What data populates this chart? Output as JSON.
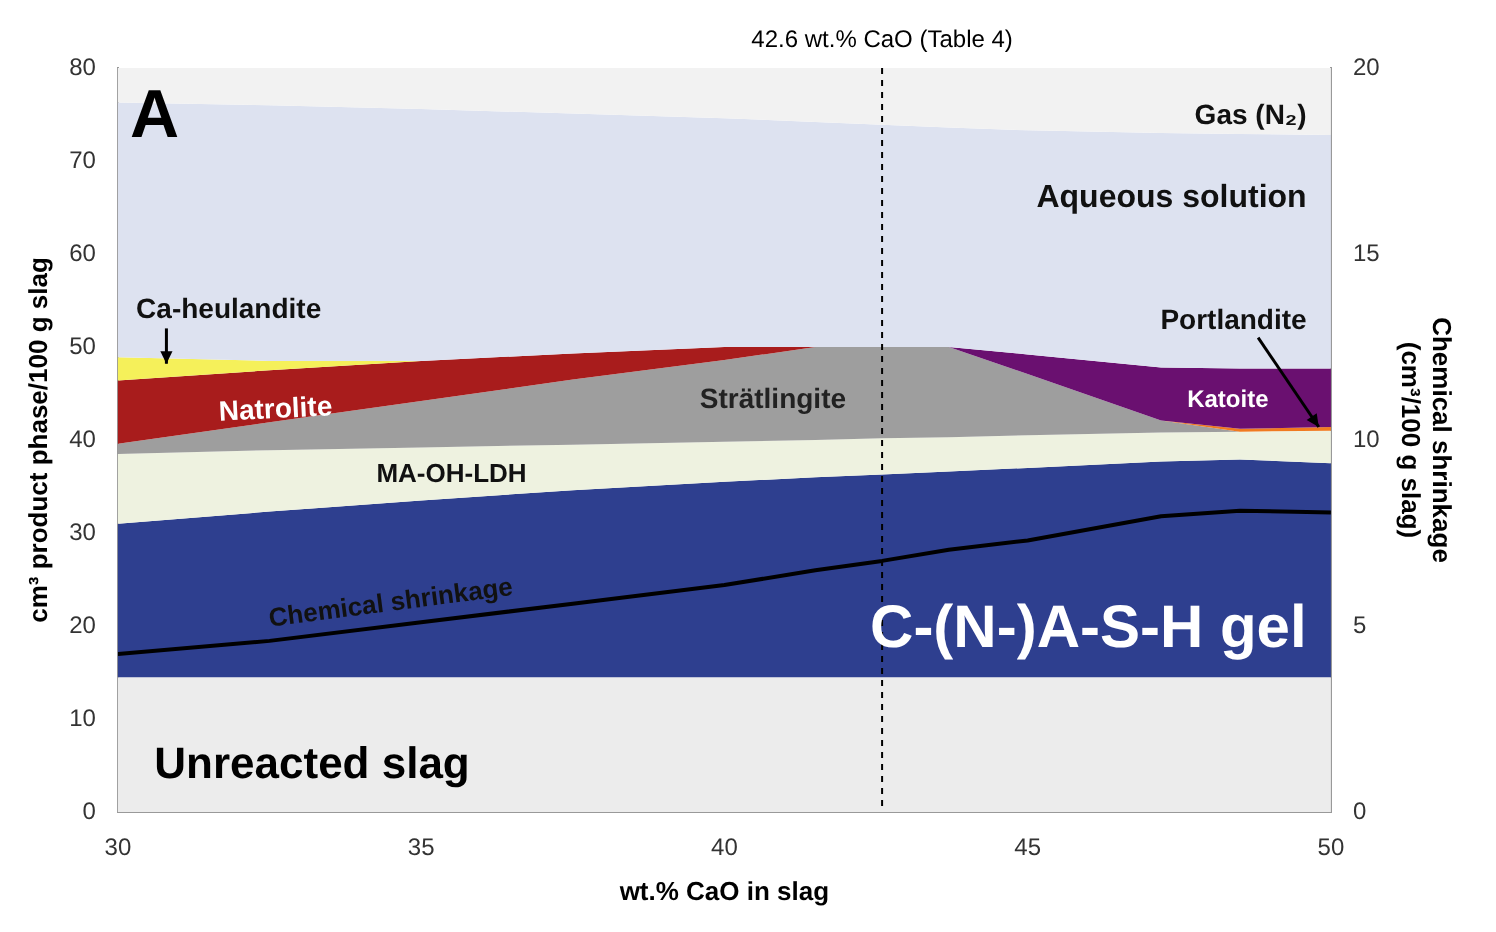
{
  "chart_data": {
    "type": "area",
    "stacked": true,
    "xlabel": "wt.% CaO in slag",
    "ylabel": "cm³ product phase/100 g slag",
    "y2label": "Chemical shrinkage (cm³/100 g slag)",
    "x": [
      30,
      32.5,
      35,
      37.5,
      40,
      41.5,
      42.6,
      43.7,
      45,
      47.2,
      48.5,
      50
    ],
    "xlim": [
      30,
      50
    ],
    "xticks": [
      30,
      35,
      40,
      45,
      50
    ],
    "ylim": [
      0,
      80
    ],
    "yticks": [
      0,
      10,
      20,
      30,
      40,
      50,
      60,
      70,
      80
    ],
    "y2lim": [
      0,
      20
    ],
    "y2ticks": [
      0,
      5,
      10,
      15,
      20
    ],
    "series": [
      {
        "name": "Unreacted slag",
        "color": "#ececec",
        "values": [
          14.5,
          14.5,
          14.5,
          14.5,
          14.5,
          14.5,
          14.5,
          14.5,
          14.5,
          14.5,
          14.5,
          14.5
        ]
      },
      {
        "name": "C-(N-)A-S-H gel",
        "color": "#2e3f8f",
        "values": [
          16.5,
          17.8,
          19,
          20.1,
          21,
          21.5,
          21.8,
          22.1,
          22.5,
          23.2,
          23.4,
          23
        ]
      },
      {
        "name": "MA-OH-LDH",
        "color": "#eef2e0",
        "values": [
          7.5,
          6.6,
          5.7,
          4.9,
          4.3,
          4,
          3.9,
          3.7,
          3.5,
          3.1,
          3,
          3.5
        ]
      },
      {
        "name": "Strätlingite",
        "color": "#9e9e9e",
        "values": [
          1.1,
          3,
          5,
          7,
          8.8,
          10,
          9.8,
          9.7,
          6.6,
          1.3,
          0,
          null
        ]
      },
      {
        "name": "Portlandite",
        "color": "#f07a20",
        "values": [
          null,
          null,
          null,
          null,
          null,
          null,
          null,
          null,
          null,
          0,
          0.3,
          0.4
        ]
      },
      {
        "name": "Katoite",
        "color": "#6a1070",
        "values": [
          null,
          null,
          null,
          null,
          null,
          null,
          null,
          0,
          2.1,
          5.7,
          6.5,
          6.3
        ]
      },
      {
        "name": "Natrolite",
        "color": "#a81c1c",
        "values": [
          6.8,
          5.6,
          4.3,
          2.8,
          1.4,
          0,
          null,
          null,
          null,
          null,
          null,
          null
        ]
      },
      {
        "name": "Ca-heulandite",
        "color": "#f5f05a",
        "values": [
          2.5,
          1,
          0,
          null,
          null,
          null,
          null,
          null,
          null,
          null,
          null,
          null
        ]
      },
      {
        "name": "Aqueous solution",
        "color": "#dde2f0",
        "values": [
          27.4,
          27.5,
          27.1,
          25.8,
          24.6,
          24.2,
          23.9,
          23.6,
          24.1,
          25.2,
          25.2,
          25.1
        ]
      },
      {
        "name": "Gas (N₂)",
        "color": "#f2f2f2",
        "values": [
          3.7,
          4,
          4.4,
          4.9,
          5.4,
          5.8,
          6.1,
          6.4,
          6.7,
          7,
          7.1,
          7.2
        ]
      },
      {
        "name": "Chemical shrinkage",
        "type": "line",
        "axis": "y2",
        "color": "#000000",
        "values": [
          4.25,
          4.6,
          5.1,
          5.6,
          6.1,
          6.5,
          6.75,
          7.05,
          7.3,
          7.95,
          8.1,
          8.05
        ]
      }
    ],
    "ref_lines": [
      {
        "axis": "x",
        "value": 42.6,
        "label": "42.6 wt.% CaO (Table 4)",
        "color": "#000000",
        "line_style": "dashed"
      }
    ],
    "annotations": [
      "A"
    ]
  }
}
